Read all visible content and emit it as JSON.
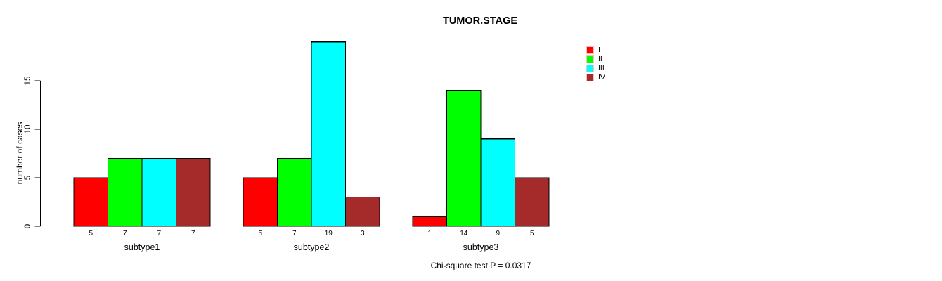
{
  "title": "TUMOR.STAGE",
  "ylabel": "number of cases",
  "note": "Chi-square test P = 0.0317",
  "legend": {
    "items": [
      {
        "label": "I",
        "color": "#FF0000"
      },
      {
        "label": "II",
        "color": "#00FF00"
      },
      {
        "label": "III",
        "color": "#00FFFF"
      },
      {
        "label": "IV",
        "color": "#A52A2A"
      }
    ]
  },
  "chart_data": {
    "type": "bar",
    "title": "TUMOR.STAGE",
    "xlabel": "",
    "ylabel": "number of cases",
    "categories": [
      "subtype1",
      "subtype2",
      "subtype3"
    ],
    "series": [
      {
        "name": "I",
        "color": "#FF0000",
        "values": [
          5,
          5,
          1
        ]
      },
      {
        "name": "II",
        "color": "#00FF00",
        "values": [
          7,
          7,
          14
        ]
      },
      {
        "name": "III",
        "color": "#00FFFF",
        "values": [
          7,
          19,
          9
        ]
      },
      {
        "name": "IV",
        "color": "#A52A2A",
        "values": [
          7,
          3,
          5
        ]
      }
    ],
    "bar_value_labels_shown": true,
    "yticks": [
      0,
      5,
      10,
      15
    ],
    "ylim": [
      0,
      19
    ],
    "grid": false,
    "legend_position": "top-right",
    "annotation": "Chi-square test P = 0.0317"
  }
}
